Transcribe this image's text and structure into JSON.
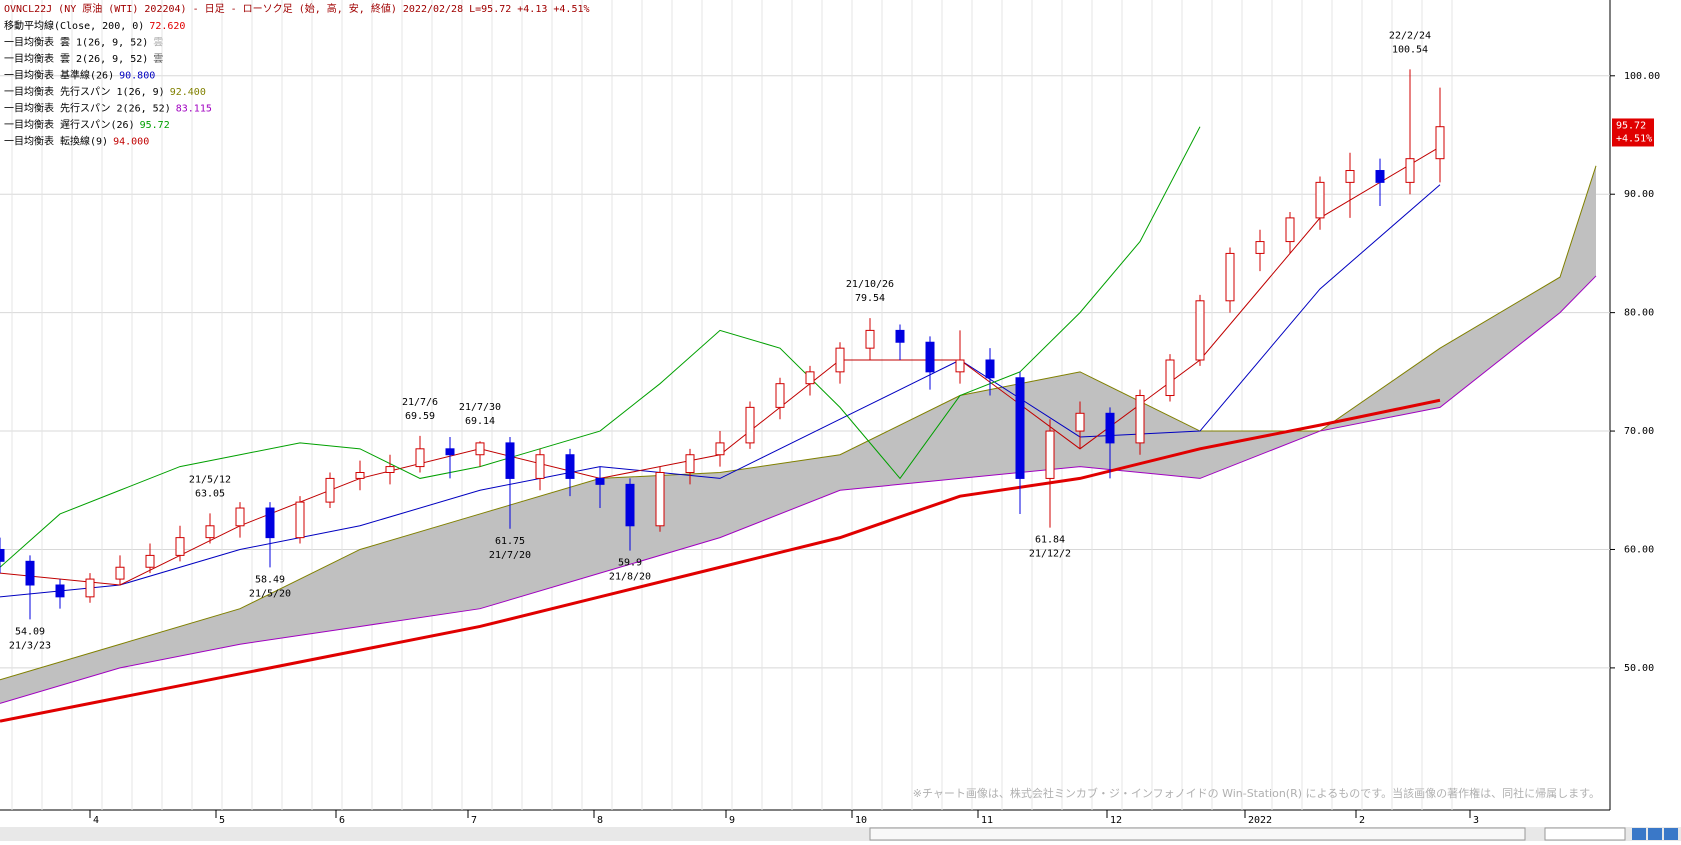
{
  "chart_data": {
    "type": "candlestick",
    "title": "OVNCL22J (NY 原油 (WTI) 202204) - 日足 - ローソク足 (始, 高, 安, 終値)  2022/02/28 L=95.72 +4.13  +4.51%",
    "legend": [
      {
        "name": "移動平均線(Close, 200, 0)",
        "value": "72.620",
        "color": "#e00000"
      },
      {
        "name": "一目均衡表 雲 1(26, 9, 52)",
        "value": "雲",
        "color": "#b0b0b0"
      },
      {
        "name": "一目均衡表 雲 2(26, 9, 52)",
        "value": "雲",
        "color": "#606060"
      },
      {
        "name": "一目均衡表 基準線(26)",
        "value": "90.800",
        "color": "#0000c0"
      },
      {
        "name": "一目均衡表 先行スパン 1(26, 9)",
        "value": "92.400",
        "color": "#808000"
      },
      {
        "name": "一目均衡表 先行スパン 2(26, 52)",
        "value": "83.115",
        "color": "#a000c0"
      },
      {
        "name": "一目均衡表 遅行スパン(26)",
        "value": "95.72",
        "color": "#00a000"
      },
      {
        "name": "一目均衡表 転換線(9)",
        "value": "94.000",
        "color": "#c00000"
      }
    ],
    "candles": {
      "x": [
        0,
        5,
        10,
        15,
        20,
        25,
        30,
        35,
        40,
        45,
        50,
        55,
        60,
        65,
        70,
        75,
        80,
        85,
        90,
        95,
        100,
        105,
        110,
        115,
        120,
        125,
        130,
        135,
        140,
        145,
        150,
        155,
        160,
        165,
        170,
        175,
        180,
        185,
        190,
        195,
        200,
        205,
        210,
        215,
        220,
        225,
        230,
        235,
        240
      ],
      "open": [
        60,
        59,
        57,
        56,
        57.5,
        58.5,
        59.5,
        61,
        62,
        63.5,
        61,
        64,
        66,
        66.5,
        67,
        68.5,
        68,
        69,
        66,
        68,
        66,
        65.5,
        62,
        66.5,
        68,
        69,
        72,
        74,
        75,
        77,
        78.5,
        77.5,
        75,
        76,
        74.5,
        66,
        70,
        71.5,
        69,
        73,
        76,
        81,
        85,
        86,
        88,
        91,
        92,
        91,
        93
      ],
      "high": [
        61,
        59.5,
        57.5,
        58,
        59.5,
        60.5,
        62,
        63.05,
        64,
        64,
        64.5,
        66.5,
        67.5,
        68,
        69.59,
        69.5,
        69.14,
        69.5,
        68.5,
        68.5,
        67,
        66,
        67,
        68.5,
        70,
        72.5,
        74.5,
        75.5,
        77.5,
        79.54,
        79,
        78,
        78.5,
        77,
        75,
        71,
        72.5,
        72,
        73.5,
        76.5,
        81.5,
        85.5,
        87,
        88.5,
        91.5,
        93.5,
        93,
        100.54,
        99
      ],
      "low": [
        58,
        54.1,
        55,
        55.5,
        57,
        58,
        59,
        60.5,
        61,
        58.49,
        60.5,
        63.5,
        65,
        65.5,
        66.5,
        66,
        67,
        61.75,
        65,
        64.5,
        63.5,
        59.9,
        61.5,
        65.5,
        67,
        68.5,
        71,
        73,
        74,
        76,
        76,
        73.5,
        74,
        73,
        63,
        61.84,
        68.5,
        66,
        68,
        72.5,
        75.5,
        80,
        83.5,
        85,
        87,
        88,
        89,
        90,
        91
      ],
      "close": [
        59,
        57,
        56,
        57.5,
        58.5,
        59.5,
        61,
        62,
        63.5,
        61,
        64,
        66,
        66.5,
        67,
        68.5,
        68,
        69,
        66,
        68,
        66,
        65.5,
        62,
        66.5,
        68,
        69,
        72,
        74,
        75,
        77,
        78.5,
        77.5,
        75,
        76,
        74.5,
        66,
        70,
        71.5,
        69,
        73,
        76,
        81,
        85,
        86,
        88,
        91,
        92,
        91,
        93,
        95.7
      ],
      "up_color": "#d00000",
      "down_color": "#0000e0"
    },
    "series": [
      {
        "color": "#e00000",
        "width": 3,
        "x": [
          0,
          20,
          40,
          60,
          80,
          100,
          120,
          140,
          160,
          180,
          200,
          220,
          240
        ],
        "values": [
          45.5,
          47.5,
          49.5,
          51.5,
          53.5,
          56,
          58.5,
          61,
          64.5,
          66,
          68.5,
          70.5,
          72.6
        ]
      },
      {
        "color": "#0000c0",
        "width": 1,
        "x": [
          0,
          20,
          40,
          60,
          80,
          100,
          120,
          140,
          160,
          180,
          200,
          220,
          240
        ],
        "values": [
          56,
          57,
          60,
          62,
          65,
          67,
          66,
          71,
          76,
          69.5,
          70,
          82,
          90.8
        ]
      },
      {
        "color": "#c00000",
        "width": 1,
        "x": [
          0,
          20,
          40,
          60,
          80,
          100,
          120,
          140,
          160,
          180,
          200,
          220,
          240
        ],
        "values": [
          58,
          57,
          62,
          66,
          68.5,
          66,
          68,
          76,
          76,
          68.5,
          76,
          88,
          94
        ]
      },
      {
        "color": "#00a000",
        "width": 1,
        "x": [
          0,
          10,
          20,
          30,
          40,
          50,
          60,
          70,
          80,
          90,
          100,
          110,
          120,
          130,
          140,
          150,
          160,
          170,
          180,
          190,
          200
        ],
        "values": [
          58.5,
          63,
          65,
          67,
          68,
          69,
          68.5,
          66,
          67,
          68.5,
          70,
          74,
          78.5,
          77,
          72,
          66,
          73,
          75,
          80,
          86,
          95.7
        ]
      }
    ],
    "cloud": {
      "x": [
        0,
        20,
        40,
        60,
        80,
        100,
        120,
        140,
        160,
        180,
        200,
        220,
        240,
        260,
        266
      ],
      "span1": [
        49,
        52,
        55,
        60,
        63,
        66,
        66.5,
        68,
        73,
        75,
        70,
        70,
        77,
        83,
        92.4
      ],
      "span2": [
        47,
        50,
        52,
        53.5,
        55,
        58,
        61,
        65,
        66,
        67,
        66,
        70,
        72,
        80,
        83.1
      ],
      "span1_color": "#808000",
      "span2_color": "#a000c0",
      "fill": "#c0c0c0",
      "fill_inverted": "#606060"
    },
    "annotations": [
      {
        "date": "22/2/24",
        "value": 100.54,
        "x": 235,
        "pos": "above"
      },
      {
        "date": "21/10/26",
        "value": 79.54,
        "x": 145,
        "pos": "above"
      },
      {
        "date": "21/7/6",
        "value": 69.59,
        "x": 70,
        "pos": "above"
      },
      {
        "date": "21/7/30",
        "value": 69.14,
        "x": 80,
        "pos": "above"
      },
      {
        "date": "21/5/12",
        "value": 63.05,
        "x": 35,
        "pos": "above"
      },
      {
        "date": "21/7/20",
        "value": 61.75,
        "x": 85,
        "pos": "below"
      },
      {
        "date": "21/8/20",
        "value": 59.9,
        "x": 105,
        "pos": "below"
      },
      {
        "date": "21/5/20",
        "value": 58.49,
        "x": 45,
        "pos": "below"
      },
      {
        "date": "21/3/23",
        "value": 54.09,
        "x": 5,
        "pos": "below"
      },
      {
        "date": "21/12/2",
        "value": 61.84,
        "x": 175,
        "pos": "below"
      }
    ],
    "price_tag": {
      "value": 95.72,
      "change": "+4.51%"
    },
    "xlim": [
      0,
      268
    ],
    "ylim": [
      38,
      106.4
    ],
    "yticks": [
      {
        "value": 50,
        "label": "50.00"
      },
      {
        "value": 60,
        "label": "60.00"
      },
      {
        "value": 70,
        "label": "70.00"
      },
      {
        "value": 80,
        "label": "80.00"
      },
      {
        "value": 90,
        "label": "90.00"
      },
      {
        "value": 100,
        "label": "100.00"
      }
    ],
    "xticks": [
      {
        "value": 15,
        "label": "4"
      },
      {
        "value": 36,
        "label": "5"
      },
      {
        "value": 56,
        "label": "6"
      },
      {
        "value": 78,
        "label": "7"
      },
      {
        "value": 99,
        "label": "8"
      },
      {
        "value": 121,
        "label": "9"
      },
      {
        "value": 142,
        "label": "10"
      },
      {
        "value": 163,
        "label": "11"
      },
      {
        "value": 184.5,
        "label": "12"
      },
      {
        "value": 207.5,
        "label": "2022"
      },
      {
        "value": 226,
        "label": "2"
      },
      {
        "value": 245,
        "label": "3"
      }
    ],
    "grid": true,
    "copyright": "※チャート画像は、株式会社ミンカブ・ジ・インフォノイドの Win-Station(R) によるものです。当該画像の著作権は、同社に帰属します。"
  }
}
